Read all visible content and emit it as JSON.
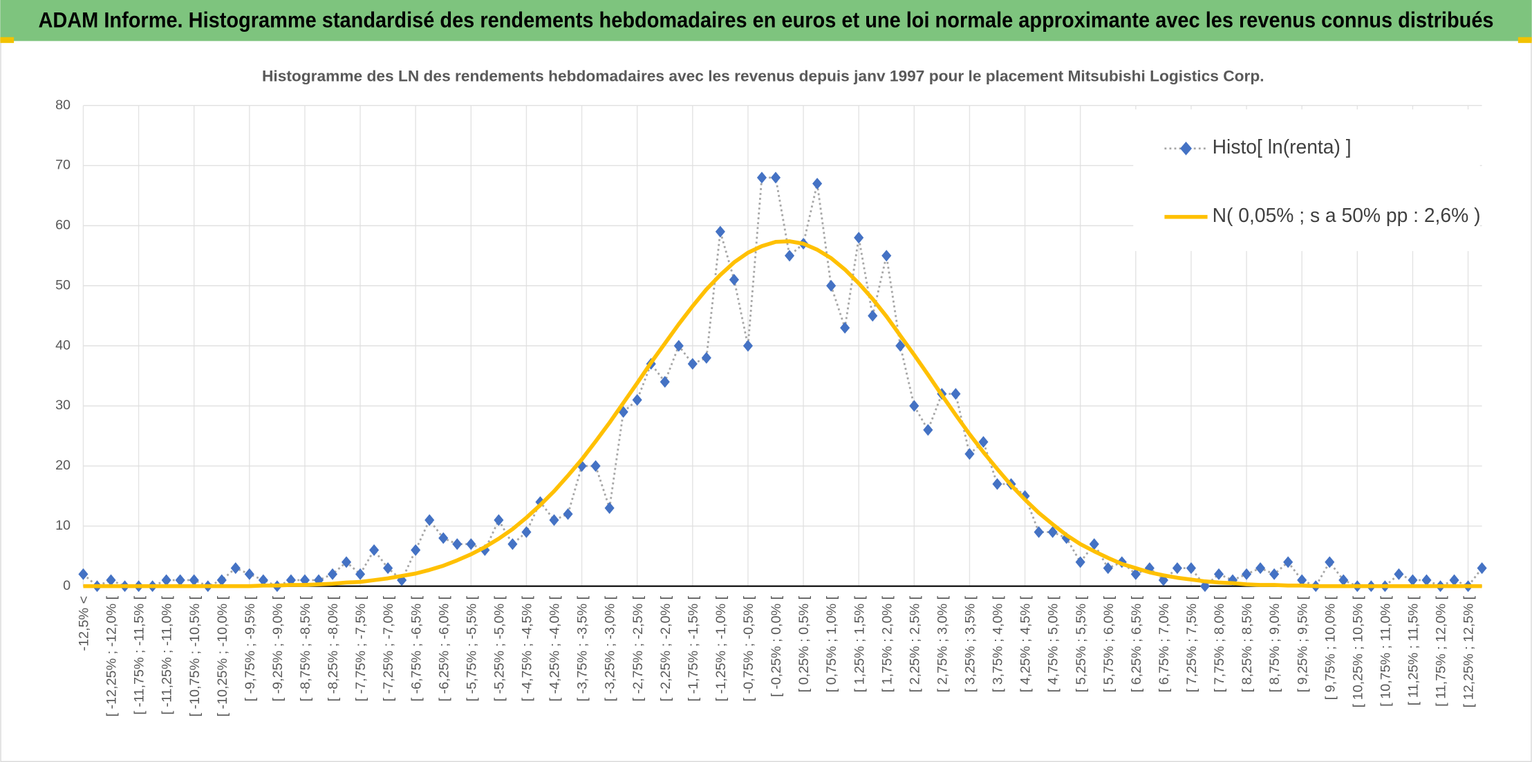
{
  "header": {
    "title": "ADAM Informe. Histogramme standardisé des rendements hebdomadaires en euros et une loi normale approximante avec les revenus connus distribués"
  },
  "chart_data": {
    "type": "line",
    "title": "Histogramme des LN des rendements hebdomadaires avec les revenus depuis janv 1997 pour le placement Mitsubishi Logistics Corp.",
    "categories": [
      "-12,5% <",
      null,
      "[ -12,25% ; -12,0% [",
      null,
      "[ -11,75% ; -11,5% [",
      null,
      "[ -11,25% ; -11,0% [",
      null,
      "[ -10,75% ; -10,5% [",
      null,
      "[ -10,25% ; -10,0% [",
      null,
      "[ -9,75% ; -9,5% [",
      null,
      "[ -9,25% ; -9,0% [",
      null,
      "[ -8,75% ; -8,5% [",
      null,
      "[ -8,25% ; -8,0% [",
      null,
      "[ -7,75% ; -7,5% [",
      null,
      "[ -7,25% ; -7,0% [",
      null,
      "[ -6,75% ; -6,5% [",
      null,
      "[ -6,25% ; -6,0% [",
      null,
      "[ -5,75% ; -5,5% [",
      null,
      "[ -5,25% ; -5,0% [",
      null,
      "[ -4,75% ; -4,5% [",
      null,
      "[ -4,25% ; -4,0% [",
      null,
      "[ -3,75% ; -3,5% [",
      null,
      "[ -3,25% ; -3,0% [",
      null,
      "[ -2,75% ; -2,5% [",
      null,
      "[ -2,25% ; -2,0% [",
      null,
      "[ -1,75% ; -1,5% [",
      null,
      "[ -1,25% ; -1,0% [",
      null,
      "[ -0,75% ; -0,5% [",
      null,
      "[ -0,25% ; 0,0% [",
      null,
      "[ 0,25% ; 0,5% [",
      null,
      "[ 0,75% ; 1,0% [",
      null,
      "[ 1,25% ; 1,5% [",
      null,
      "[ 1,75% ; 2,0% [",
      null,
      "[ 2,25% ; 2,5% [",
      null,
      "[ 2,75% ; 3,0% [",
      null,
      "[ 3,25% ; 3,5% [",
      null,
      "[ 3,75% ; 4,0% [",
      null,
      "[ 4,25% ; 4,5% [",
      null,
      "[ 4,75% ; 5,0% [",
      null,
      "[ 5,25% ; 5,5% [",
      null,
      "[ 5,75% ; 6,0% [",
      null,
      "[ 6,25% ; 6,5% [",
      null,
      "[ 6,75% ; 7,0% [",
      null,
      "[ 7,25% ; 7,5% [",
      null,
      "[ 7,75% ; 8,0% [",
      null,
      "[ 8,25% ; 8,5% [",
      null,
      "[ 8,75% ; 9,0% [",
      null,
      "[ 9,25% ; 9,5% [",
      null,
      "[ 9,75% ; 10,0% [",
      null,
      "[ 10,25% ; 10,5% [",
      null,
      "[ 10,75% ; 11,0% [",
      null,
      "[ 11,25% ; 11,5% [",
      null,
      "[ 11,75% ; 12,0% [",
      null,
      "[ 12,25% ; 12,5% [",
      null
    ],
    "series": [
      {
        "name": "Histo[ ln(renta) ]",
        "color": "#4472c4",
        "values": [
          2,
          0,
          1,
          0,
          0,
          0,
          1,
          1,
          1,
          0,
          1,
          3,
          2,
          1,
          0,
          1,
          1,
          1,
          2,
          4,
          2,
          6,
          3,
          1,
          6,
          11,
          8,
          7,
          7,
          6,
          11,
          7,
          9,
          14,
          11,
          12,
          20,
          20,
          13,
          29,
          31,
          37,
          34,
          40,
          37,
          38,
          59,
          51,
          40,
          68,
          68,
          55,
          57,
          67,
          50,
          43,
          58,
          45,
          55,
          40,
          30,
          26,
          32,
          32,
          22,
          24,
          17,
          17,
          15,
          9,
          9,
          8,
          4,
          7,
          3,
          4,
          2,
          3,
          1,
          3,
          3,
          0,
          2,
          1,
          2,
          3,
          2,
          4,
          1,
          0,
          4,
          1,
          0,
          0,
          0,
          2,
          1,
          1,
          0,
          1,
          0,
          3
        ]
      },
      {
        "name": "N( 0,05% ; s a 50% pp : 2,6% )",
        "color": "#ffc000",
        "values": [
          0,
          0,
          0,
          0,
          0,
          0,
          0,
          0,
          0,
          0,
          0,
          0,
          0,
          0.1,
          0.1,
          0.2,
          0.2,
          0.3,
          0.4,
          0.6,
          0.7,
          1.0,
          1.3,
          1.7,
          2.1,
          2.7,
          3.4,
          4.3,
          5.3,
          6.5,
          7.9,
          9.5,
          11.4,
          13.5,
          15.8,
          18.4,
          21.1,
          24.1,
          27.2,
          30.5,
          33.8,
          37.2,
          40.4,
          43.6,
          46.6,
          49.4,
          51.8,
          53.9,
          55.5,
          56.6,
          57.3,
          57.4,
          57.0,
          56.0,
          54.6,
          52.7,
          50.4,
          47.8,
          44.9,
          41.7,
          38.5,
          35.2,
          31.8,
          28.5,
          25.3,
          22.3,
          19.5,
          16.8,
          14.4,
          12.2,
          10.3,
          8.5,
          7.0,
          5.8,
          4.7,
          3.7,
          3.0,
          2.3,
          1.8,
          1.4,
          1.1,
          0.8,
          0.6,
          0.5,
          0.3,
          0.2,
          0.2,
          0.1,
          0.1,
          0,
          0,
          0,
          0,
          0,
          0,
          0,
          0,
          0,
          0,
          0,
          0,
          0
        ]
      }
    ],
    "ylim": [
      0,
      80
    ],
    "yticks": [
      0,
      10,
      20,
      30,
      40,
      50,
      60,
      70,
      80
    ],
    "grid": true,
    "legend": "top-right"
  }
}
